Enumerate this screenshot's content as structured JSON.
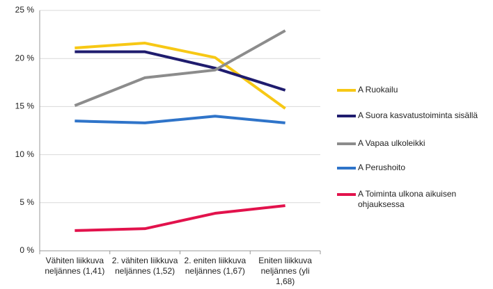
{
  "chart_data": {
    "type": "line",
    "categories": [
      "Vähiten liikkuva neljännes (1,41)",
      "2. vähiten liikkuva neljännes (1,52)",
      "2. eniten liikkuva neljännes (1,67)",
      "Eniten liikkuva neljännes (yli 1,68)"
    ],
    "series": [
      {
        "name": "A Ruokailu",
        "color": "#f7c815",
        "values": [
          21.1,
          21.6,
          20.1,
          14.8
        ]
      },
      {
        "name": "A Suora kasvatustoiminta sisällä",
        "color": "#1f1c6e",
        "values": [
          20.7,
          20.7,
          19.0,
          16.7
        ]
      },
      {
        "name": "A Vapaa ulkoleikki",
        "color": "#8c8c8c",
        "values": [
          15.1,
          18.0,
          18.8,
          22.9
        ]
      },
      {
        "name": "A Perushoito",
        "color": "#2f74c9",
        "values": [
          13.5,
          13.3,
          14.0,
          13.3
        ]
      },
      {
        "name": "A Toiminta ulkona aikuisen ohjauksessa",
        "color": "#e2124c",
        "values": [
          2.1,
          2.3,
          3.9,
          4.7
        ]
      }
    ],
    "ylim": [
      0,
      25
    ],
    "yticks": [
      {
        "value": 0,
        "label": "0 %"
      },
      {
        "value": 5,
        "label": "5 %"
      },
      {
        "value": 10,
        "label": "10 %"
      },
      {
        "value": 15,
        "label": "15 %"
      },
      {
        "value": 20,
        "label": "20 %"
      },
      {
        "value": 25,
        "label": "25 %"
      }
    ],
    "grid": true
  }
}
